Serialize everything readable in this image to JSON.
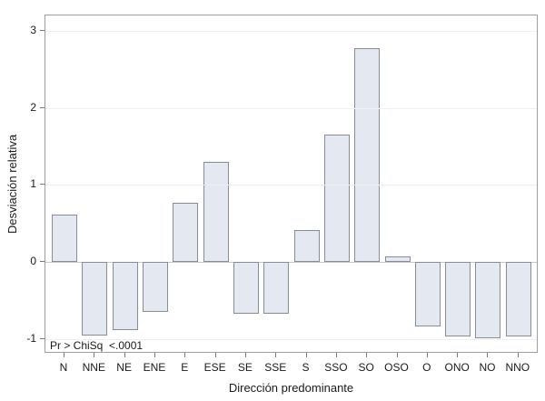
{
  "chart_data": {
    "type": "bar",
    "title": "",
    "xlabel": "Dirección predominante",
    "ylabel": "Desviación relativa",
    "categories": [
      "N",
      "NNE",
      "NE",
      "ENE",
      "E",
      "ESE",
      "SE",
      "SSE",
      "S",
      "SSO",
      "SO",
      "OSO",
      "O",
      "ONO",
      "NO",
      "NNO"
    ],
    "values": [
      0.62,
      -0.95,
      -0.88,
      -0.65,
      0.77,
      1.3,
      -0.67,
      -0.67,
      0.42,
      1.65,
      2.78,
      0.07,
      -0.84,
      -0.96,
      -0.99,
      -0.97
    ],
    "y_ticks": [
      3,
      2,
      1,
      0,
      -1
    ],
    "ylim": [
      -1.19,
      3.2
    ],
    "grid": "horizontal",
    "legend": "none",
    "annotation": "Pr > ChiSq  <.0001"
  },
  "style": {
    "background": "#ffffff",
    "bar_fill": "#e4e8f1",
    "bar_border": "#878d96",
    "grid_color": "#f0f0f0",
    "zero_line_color": "#c6c6c6",
    "frame_color": "#9e9e9e",
    "tick_color": "#7a7a7a",
    "text_color": "#1a1a1a"
  }
}
